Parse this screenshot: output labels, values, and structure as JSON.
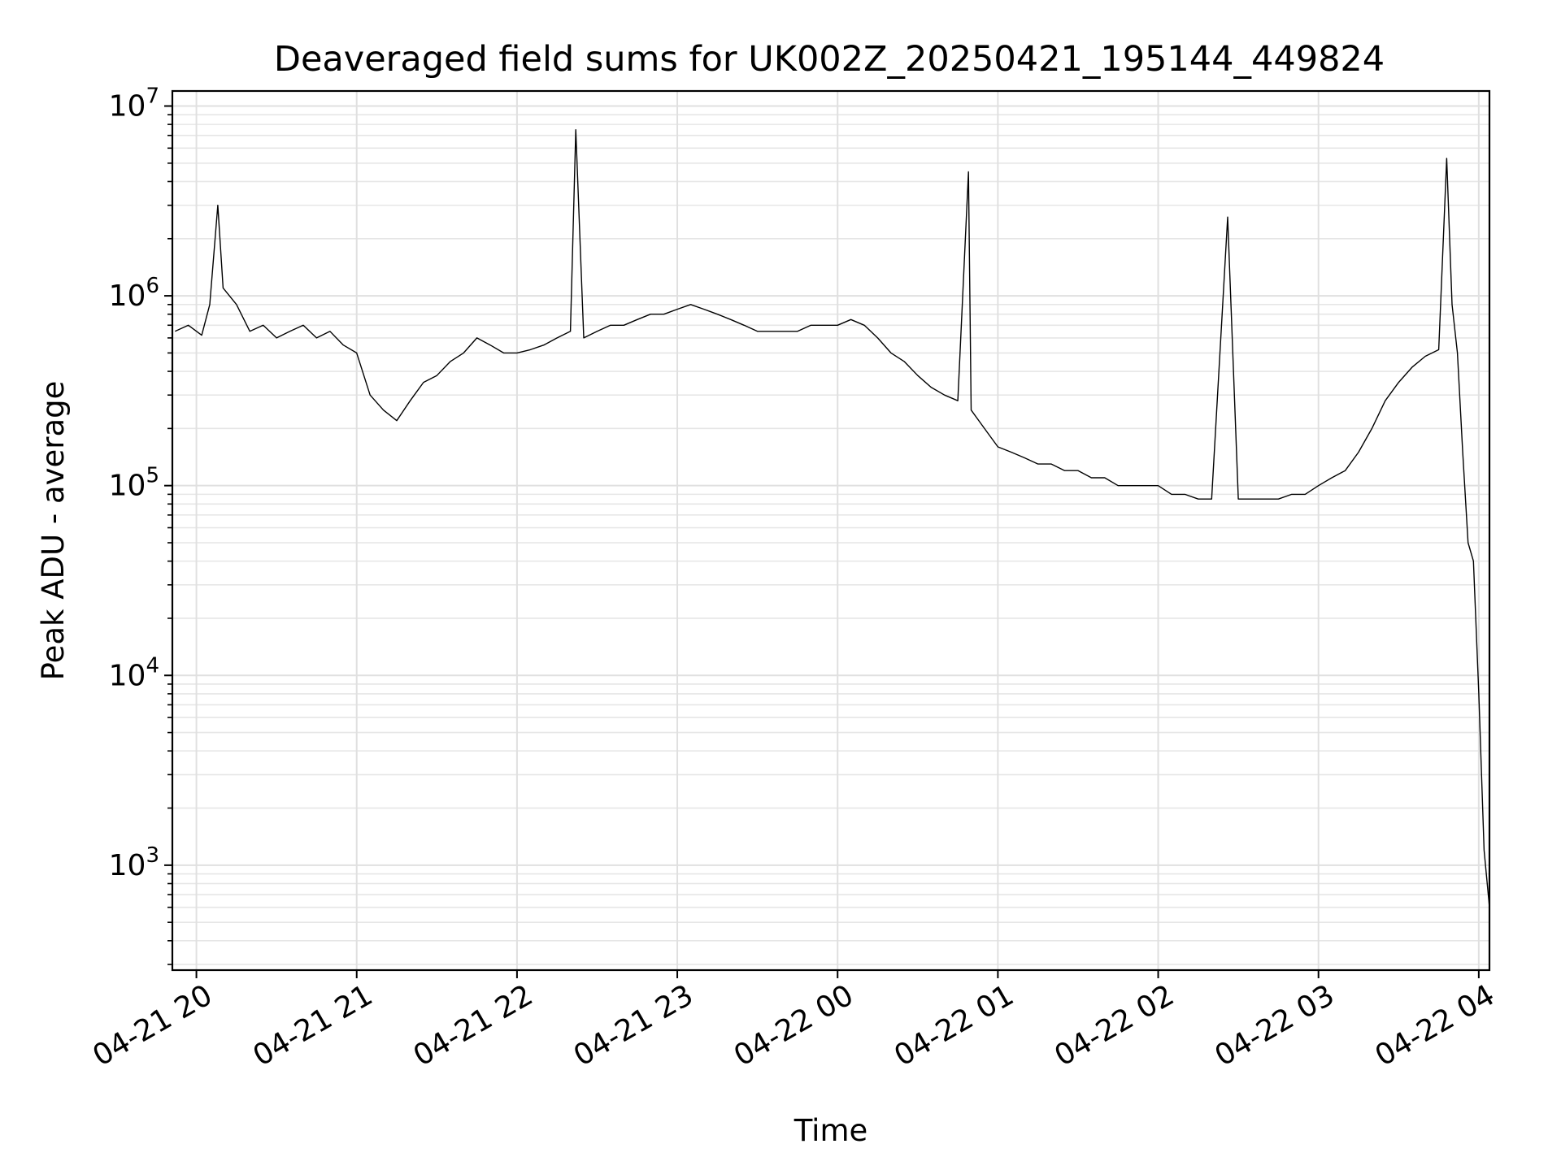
{
  "chart_data": {
    "type": "line",
    "title": "Deaveraged field sums for UK002Z_20250421_195144_449824",
    "xlabel": "Time",
    "ylabel": "Peak ADU - average",
    "y_scale": "log",
    "ylim": [
      280,
      12000000
    ],
    "xlim": [
      "2025-04-21 19:51",
      "2025-04-22 04:04"
    ],
    "grid": true,
    "x_ticks": [
      "04-21 20",
      "04-21 21",
      "04-21 22",
      "04-21 23",
      "04-22 00",
      "04-22 01",
      "04-22 02",
      "04-22 03",
      "04-22 04"
    ],
    "y_ticks": [
      {
        "base": "10",
        "exp": "3",
        "value": 1000
      },
      {
        "base": "10",
        "exp": "4",
        "value": 10000
      },
      {
        "base": "10",
        "exp": "5",
        "value": 100000
      },
      {
        "base": "10",
        "exp": "6",
        "value": 1000000
      },
      {
        "base": "10",
        "exp": "7",
        "value": 10000000
      }
    ],
    "line_color": "#000000",
    "series": [
      {
        "x": [
          "2025-04-21 19:52",
          "2025-04-21 19:57",
          "2025-04-21 20:02",
          "2025-04-21 20:05",
          "2025-04-21 20:08",
          "2025-04-21 20:10",
          "2025-04-21 20:15",
          "2025-04-21 20:20",
          "2025-04-21 20:25",
          "2025-04-21 20:30",
          "2025-04-21 20:35",
          "2025-04-21 20:40",
          "2025-04-21 20:45",
          "2025-04-21 20:50",
          "2025-04-21 20:55",
          "2025-04-21 21:00",
          "2025-04-21 21:05",
          "2025-04-21 21:10",
          "2025-04-21 21:15",
          "2025-04-21 21:20",
          "2025-04-21 21:25",
          "2025-04-21 21:30",
          "2025-04-21 21:35",
          "2025-04-21 21:40",
          "2025-04-21 21:45",
          "2025-04-21 21:50",
          "2025-04-21 21:55",
          "2025-04-21 22:00",
          "2025-04-21 22:05",
          "2025-04-21 22:10",
          "2025-04-21 22:15",
          "2025-04-21 22:20",
          "2025-04-21 22:22",
          "2025-04-21 22:25",
          "2025-04-21 22:30",
          "2025-04-21 22:35",
          "2025-04-21 22:40",
          "2025-04-21 22:45",
          "2025-04-21 22:50",
          "2025-04-21 22:55",
          "2025-04-21 23:00",
          "2025-04-21 23:05",
          "2025-04-21 23:10",
          "2025-04-21 23:15",
          "2025-04-21 23:20",
          "2025-04-21 23:25",
          "2025-04-21 23:30",
          "2025-04-21 23:35",
          "2025-04-21 23:40",
          "2025-04-21 23:45",
          "2025-04-21 23:50",
          "2025-04-21 23:55",
          "2025-04-22 00:00",
          "2025-04-22 00:05",
          "2025-04-22 00:10",
          "2025-04-22 00:15",
          "2025-04-22 00:20",
          "2025-04-22 00:25",
          "2025-04-22 00:30",
          "2025-04-22 00:35",
          "2025-04-22 00:40",
          "2025-04-22 00:45",
          "2025-04-22 00:49",
          "2025-04-22 00:50",
          "2025-04-22 00:55",
          "2025-04-22 01:00",
          "2025-04-22 01:05",
          "2025-04-22 01:10",
          "2025-04-22 01:15",
          "2025-04-22 01:20",
          "2025-04-22 01:25",
          "2025-04-22 01:30",
          "2025-04-22 01:35",
          "2025-04-22 01:40",
          "2025-04-22 01:45",
          "2025-04-22 01:50",
          "2025-04-22 01:55",
          "2025-04-22 02:00",
          "2025-04-22 02:05",
          "2025-04-22 02:10",
          "2025-04-22 02:15",
          "2025-04-22 02:20",
          "2025-04-22 02:26",
          "2025-04-22 02:30",
          "2025-04-22 02:35",
          "2025-04-22 02:40",
          "2025-04-22 02:45",
          "2025-04-22 02:50",
          "2025-04-22 02:55",
          "2025-04-22 03:00",
          "2025-04-22 03:05",
          "2025-04-22 03:10",
          "2025-04-22 03:15",
          "2025-04-22 03:20",
          "2025-04-22 03:25",
          "2025-04-22 03:30",
          "2025-04-22 03:35",
          "2025-04-22 03:40",
          "2025-04-22 03:45",
          "2025-04-22 03:48",
          "2025-04-22 03:50",
          "2025-04-22 03:52",
          "2025-04-22 03:54",
          "2025-04-22 03:56",
          "2025-04-22 03:58",
          "2025-04-22 04:00",
          "2025-04-22 04:02",
          "2025-04-22 04:04"
        ],
        "y": [
          650000,
          700000,
          620000,
          900000,
          3000000,
          1100000,
          900000,
          650000,
          700000,
          600000,
          650000,
          700000,
          600000,
          650000,
          550000,
          500000,
          300000,
          250000,
          220000,
          280000,
          350000,
          380000,
          450000,
          500000,
          600000,
          550000,
          500000,
          500000,
          520000,
          550000,
          600000,
          650000,
          7500000,
          600000,
          650000,
          700000,
          700000,
          750000,
          800000,
          800000,
          850000,
          900000,
          850000,
          800000,
          750000,
          700000,
          650000,
          650000,
          650000,
          650000,
          700000,
          700000,
          700000,
          750000,
          700000,
          600000,
          500000,
          450000,
          380000,
          330000,
          300000,
          280000,
          4500000,
          250000,
          200000,
          160000,
          150000,
          140000,
          130000,
          130000,
          120000,
          120000,
          110000,
          110000,
          100000,
          100000,
          100000,
          100000,
          90000,
          90000,
          85000,
          85000,
          2600000,
          85000,
          85000,
          85000,
          85000,
          90000,
          90000,
          100000,
          110000,
          120000,
          150000,
          200000,
          280000,
          350000,
          420000,
          480000,
          520000,
          5300000,
          900000,
          500000,
          150000,
          50000,
          40000,
          8000,
          1200,
          600
        ]
      }
    ]
  }
}
